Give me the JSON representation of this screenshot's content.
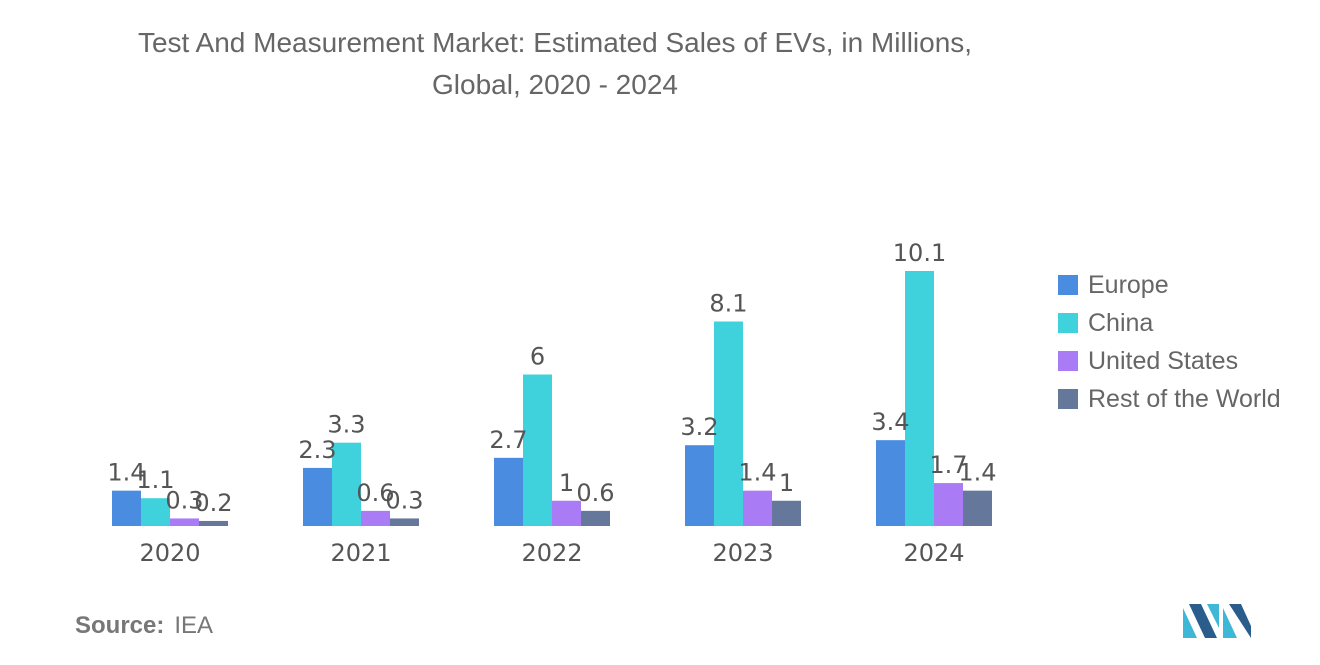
{
  "title_line1": "Test And Measurement Market: Estimated Sales of EVs, in Millions,",
  "title_line2": "Global, 2020 - 2024",
  "source_label": "Source:",
  "source_value": "IEA",
  "colors": {
    "Europe": "#4a8de0",
    "China": "#3fd2dc",
    "United States": "#a97cf5",
    "Rest of the World": "#65789c"
  },
  "chart_data": {
    "type": "bar",
    "title": "Test And Measurement Market: Estimated Sales of EVs, in Millions, Global, 2020 - 2024",
    "xlabel": "",
    "ylabel": "",
    "categories": [
      "2020",
      "2021",
      "2022",
      "2023",
      "2024"
    ],
    "series": [
      {
        "name": "Europe",
        "values": [
          1.4,
          2.3,
          2.7,
          3.2,
          3.4
        ]
      },
      {
        "name": "China",
        "values": [
          1.1,
          3.3,
          6,
          8.1,
          10.1
        ]
      },
      {
        "name": "United States",
        "values": [
          0.3,
          0.6,
          1,
          1.4,
          1.7
        ]
      },
      {
        "name": "Rest of the World",
        "values": [
          0.2,
          0.3,
          0.6,
          1,
          1.4
        ]
      }
    ],
    "value_labels": [
      [
        "1.4",
        "2.3",
        "2.7",
        "3.2",
        "3.4"
      ],
      [
        "1.1",
        "3.3",
        "6",
        "8.1",
        "10.1"
      ],
      [
        "0.3",
        "0.6",
        "1",
        "1.4",
        "1.7"
      ],
      [
        "0.2",
        "0.3",
        "0.6",
        "1",
        "1.4"
      ]
    ],
    "ylim": [
      0,
      10.1
    ],
    "grid": false,
    "legend": "right"
  }
}
